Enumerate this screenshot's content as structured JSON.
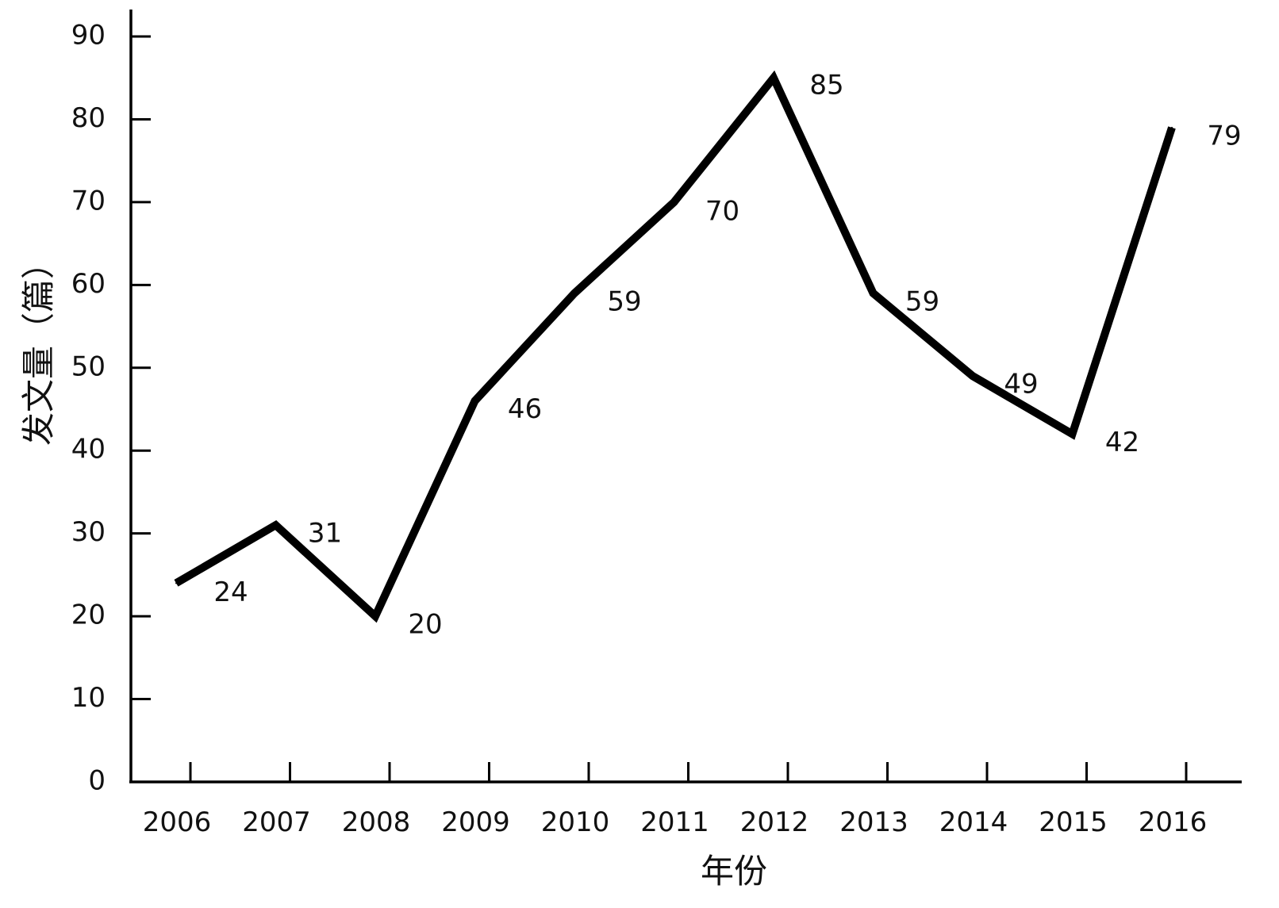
{
  "chart_data": {
    "type": "line",
    "title": "",
    "xlabel": "年份",
    "ylabel": "发文量（篇）",
    "categories": [
      "2006",
      "2007",
      "2008",
      "2009",
      "2010",
      "2011",
      "2012",
      "2013",
      "2014",
      "2015",
      "2016"
    ],
    "series": [
      {
        "values": [
          24,
          31,
          20,
          46,
          59,
          70,
          85,
          59,
          49,
          42,
          79
        ],
        "labels": [
          "24",
          "31",
          "20",
          "46",
          "59",
          "70",
          "85",
          "59",
          "49",
          "42",
          "79"
        ],
        "color": "#000000"
      }
    ],
    "ylim": [
      0,
      90
    ],
    "yticks": [
      "0",
      "10",
      "20",
      "30",
      "40",
      "50",
      "60",
      "70",
      "80",
      "90"
    ],
    "grid": false,
    "legend": "none"
  }
}
